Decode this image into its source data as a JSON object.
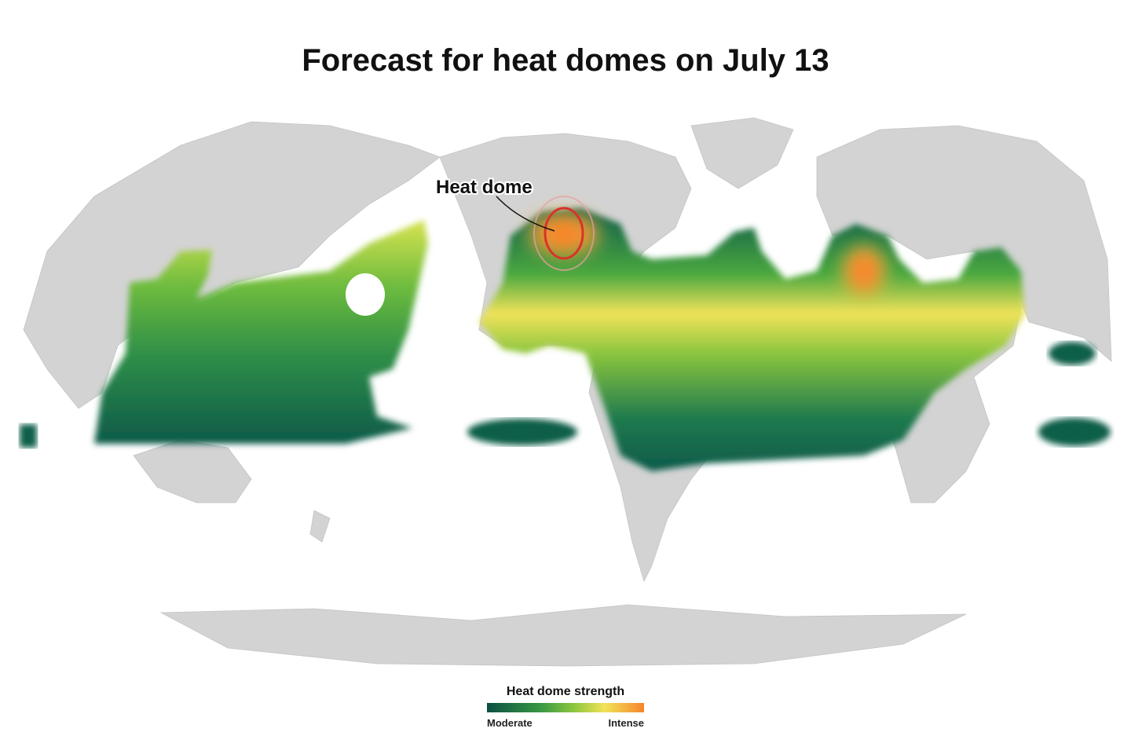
{
  "header": {
    "title": "Forecast for heat domes on July 13"
  },
  "annotation": {
    "label": "Heat dome"
  },
  "legend": {
    "title": "Heat dome strength",
    "low": "Moderate",
    "high": "Intense"
  }
}
